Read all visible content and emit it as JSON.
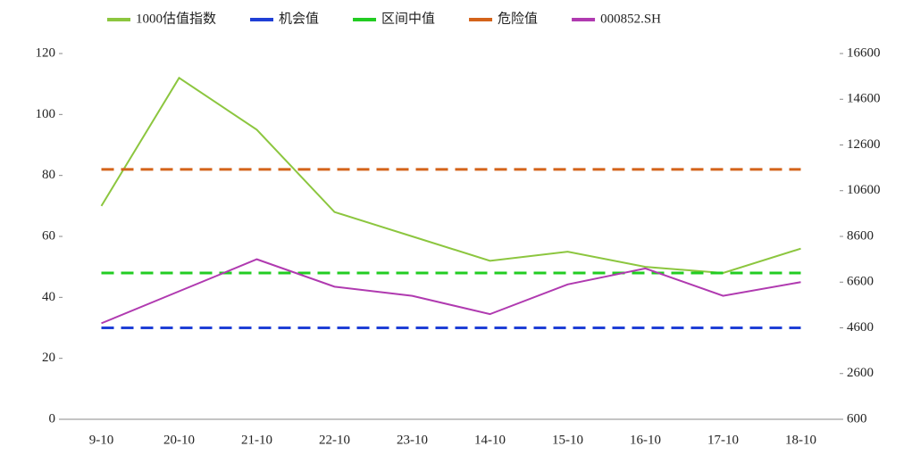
{
  "chart_data": {
    "type": "line",
    "categories": [
      "9-10",
      "20-10",
      "21-10",
      "22-10",
      "23-10",
      "14-10",
      "15-10",
      "16-10",
      "17-10",
      "18-10"
    ],
    "series": [
      {
        "name": "1000估值指数",
        "color": "#8cc63f",
        "values": [
          70,
          112,
          95,
          68,
          60,
          52,
          55,
          50,
          48,
          56
        ]
      },
      {
        "name": "机会值",
        "color": "#1f3fd6",
        "dash": true,
        "values": [
          30,
          30,
          30,
          30,
          30,
          30,
          30,
          30,
          30,
          30
        ]
      },
      {
        "name": "区间中值",
        "color": "#22cc22",
        "dash": true,
        "values": [
          48,
          48,
          48,
          48,
          48,
          48,
          48,
          48,
          48,
          48
        ]
      },
      {
        "name": "危险值",
        "color": "#d4631a",
        "dash": true,
        "values": [
          82,
          82,
          82,
          82,
          82,
          82,
          82,
          82,
          82,
          82
        ]
      },
      {
        "name": "000852.SH",
        "color": "#b03ab0",
        "axis": "y2",
        "values": [
          4800,
          6200,
          7600,
          6400,
          6000,
          5200,
          6500,
          7200,
          6000,
          6600
        ]
      }
    ],
    "ylim": [
      0,
      120
    ],
    "yticks": [
      0,
      20,
      40,
      60,
      80,
      100,
      120
    ],
    "y2lim": [
      600,
      16600
    ],
    "y2ticks": [
      600,
      2600,
      4600,
      6600,
      8600,
      10600,
      12600,
      14600,
      16600
    ],
    "grid": false
  }
}
